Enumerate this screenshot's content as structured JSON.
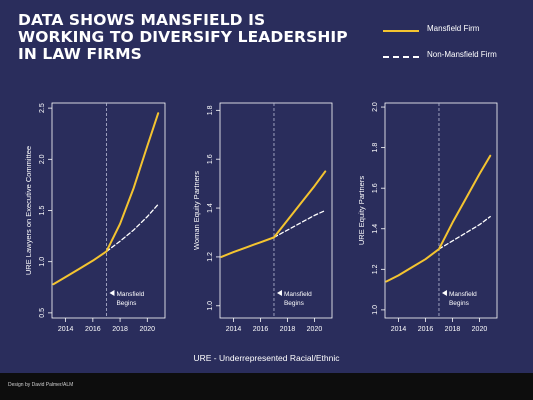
{
  "title_lines": [
    "DATA SHOWS MANSFIELD IS",
    "WORKING TO DIVERSIFY LEADERSHIP",
    "IN LAW FIRMS"
  ],
  "legend": [
    {
      "label": "Mansfield Firm",
      "style": "solid"
    },
    {
      "label": "Non-Mansfield Firm",
      "style": "dashed"
    }
  ],
  "footnote": "URE - Underrepresented Racial/Ethnic",
  "credit": "Design by David Palmer/ALM",
  "colors": {
    "background": "#2a2d5c",
    "mansfield": "#f4c430",
    "non_mansfield": "#ffffff",
    "footer": "#0d0d0d"
  },
  "chart_data": [
    {
      "type": "line",
      "ylabel": "URE Lawyers on Executive Committee",
      "xlim": [
        2013.0,
        2021.3
      ],
      "ylim": [
        0.45,
        2.55
      ],
      "xticks": [
        2014,
        2016,
        2018,
        2020
      ],
      "yticks": [
        0.5,
        1.0,
        1.5,
        2.0,
        2.5
      ],
      "ytick_labels": [
        "0.5",
        "1.0",
        "1.5",
        "2.0",
        "2.5"
      ],
      "vline": {
        "x": 2017,
        "label": [
          "Mansfield",
          "Begins"
        ]
      },
      "series": [
        {
          "name": "Mansfield Firm",
          "style": "solid",
          "x": [
            2013.1,
            2014,
            2015,
            2016,
            2017,
            2018,
            2019,
            2020,
            2020.8
          ],
          "y": [
            0.78,
            0.85,
            0.93,
            1.01,
            1.1,
            1.37,
            1.72,
            2.13,
            2.45
          ]
        },
        {
          "name": "Non-Mansfield Firm",
          "style": "dashed",
          "x": [
            2017,
            2018,
            2019,
            2020,
            2020.8
          ],
          "y": [
            1.1,
            1.2,
            1.31,
            1.44,
            1.56
          ]
        }
      ]
    },
    {
      "type": "line",
      "ylabel": "Woman Equity Partners",
      "xlim": [
        2013.0,
        2021.3
      ],
      "ylim": [
        0.95,
        1.83
      ],
      "xticks": [
        2014,
        2016,
        2018,
        2020
      ],
      "yticks": [
        1.0,
        1.2,
        1.4,
        1.6,
        1.8
      ],
      "ytick_labels": [
        "1.0",
        "1.2",
        "1.4",
        "1.6",
        "1.8"
      ],
      "vline": {
        "x": 2017,
        "label": [
          "Mansfield",
          "Begins"
        ]
      },
      "series": [
        {
          "name": "Mansfield Firm",
          "style": "solid",
          "x": [
            2013.1,
            2014,
            2015,
            2016,
            2017,
            2018,
            2019,
            2020,
            2020.8
          ],
          "y": [
            1.2,
            1.22,
            1.24,
            1.26,
            1.28,
            1.35,
            1.42,
            1.49,
            1.55
          ]
        },
        {
          "name": "Non-Mansfield Firm",
          "style": "dashed",
          "x": [
            2017,
            2018,
            2019,
            2020,
            2020.8
          ],
          "y": [
            1.28,
            1.31,
            1.34,
            1.37,
            1.39
          ]
        }
      ]
    },
    {
      "type": "line",
      "ylabel": "URE Equity Partners",
      "xlim": [
        2013.0,
        2021.3
      ],
      "ylim": [
        0.96,
        2.02
      ],
      "xticks": [
        2014,
        2016,
        2018,
        2020
      ],
      "yticks": [
        1.0,
        1.2,
        1.4,
        1.6,
        1.8,
        2.0
      ],
      "ytick_labels": [
        "1.0",
        "1.2",
        "1.4",
        "1.6",
        "1.8",
        "2.0"
      ],
      "vline": {
        "x": 2017,
        "label": [
          "Mansfield",
          "Begins"
        ]
      },
      "series": [
        {
          "name": "Mansfield Firm",
          "style": "solid",
          "x": [
            2013.1,
            2014,
            2015,
            2016,
            2017,
            2018,
            2019,
            2020,
            2020.8
          ],
          "y": [
            1.14,
            1.17,
            1.21,
            1.25,
            1.3,
            1.43,
            1.55,
            1.67,
            1.76
          ]
        },
        {
          "name": "Non-Mansfield Firm",
          "style": "dashed",
          "x": [
            2017,
            2018,
            2019,
            2020,
            2020.8
          ],
          "y": [
            1.3,
            1.34,
            1.38,
            1.42,
            1.46
          ]
        }
      ]
    }
  ]
}
